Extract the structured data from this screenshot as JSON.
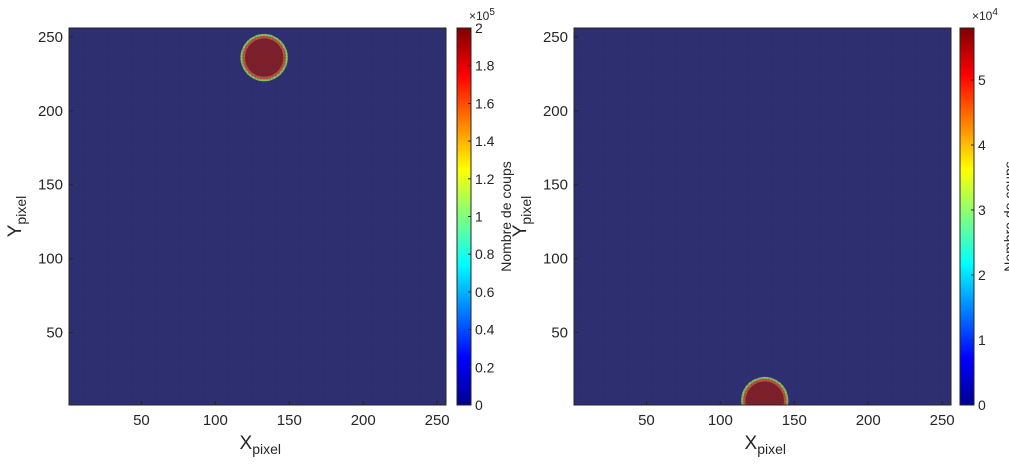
{
  "chart_data": [
    {
      "type": "heatmap",
      "xlabel": "X",
      "xlabel_sub": "pixel",
      "ylabel": "Y",
      "ylabel_sub": "pixel",
      "xlim": [
        1,
        256
      ],
      "ylim": [
        1,
        256
      ],
      "xticks": [
        50,
        100,
        150,
        200,
        250
      ],
      "yticks": [
        50,
        100,
        150,
        200,
        250
      ],
      "background_color": "#2b2d6e",
      "spot": {
        "center_x": 133,
        "center_y": 236,
        "radius": 15,
        "peak": 200000
      },
      "colorbar": {
        "label": "Nombre de coups",
        "clim": [
          0,
          200000
        ],
        "ticks": [
          0,
          0.2,
          0.4,
          0.6,
          0.8,
          1,
          1.2,
          1.4,
          1.6,
          1.8,
          2
        ],
        "exponent_base": "×10",
        "exponent_power": "5",
        "colormap": "jet"
      }
    },
    {
      "type": "heatmap",
      "xlabel": "X",
      "xlabel_sub": "pixel",
      "ylabel": "Y",
      "ylabel_sub": "pixel",
      "xlim": [
        1,
        256
      ],
      "ylim": [
        1,
        256
      ],
      "xticks": [
        50,
        100,
        150,
        200,
        250
      ],
      "yticks": [
        50,
        100,
        150,
        200,
        250
      ],
      "background_color": "#2b2d6e",
      "spot": {
        "center_x": 130,
        "center_y": 4,
        "radius": 15,
        "peak": 58000
      },
      "colorbar": {
        "label": "Nombre de coups",
        "clim": [
          0,
          58000
        ],
        "ticks": [
          0,
          1,
          2,
          3,
          4,
          5
        ],
        "exponent_base": "×10",
        "exponent_power": "4",
        "colormap": "jet"
      }
    }
  ]
}
